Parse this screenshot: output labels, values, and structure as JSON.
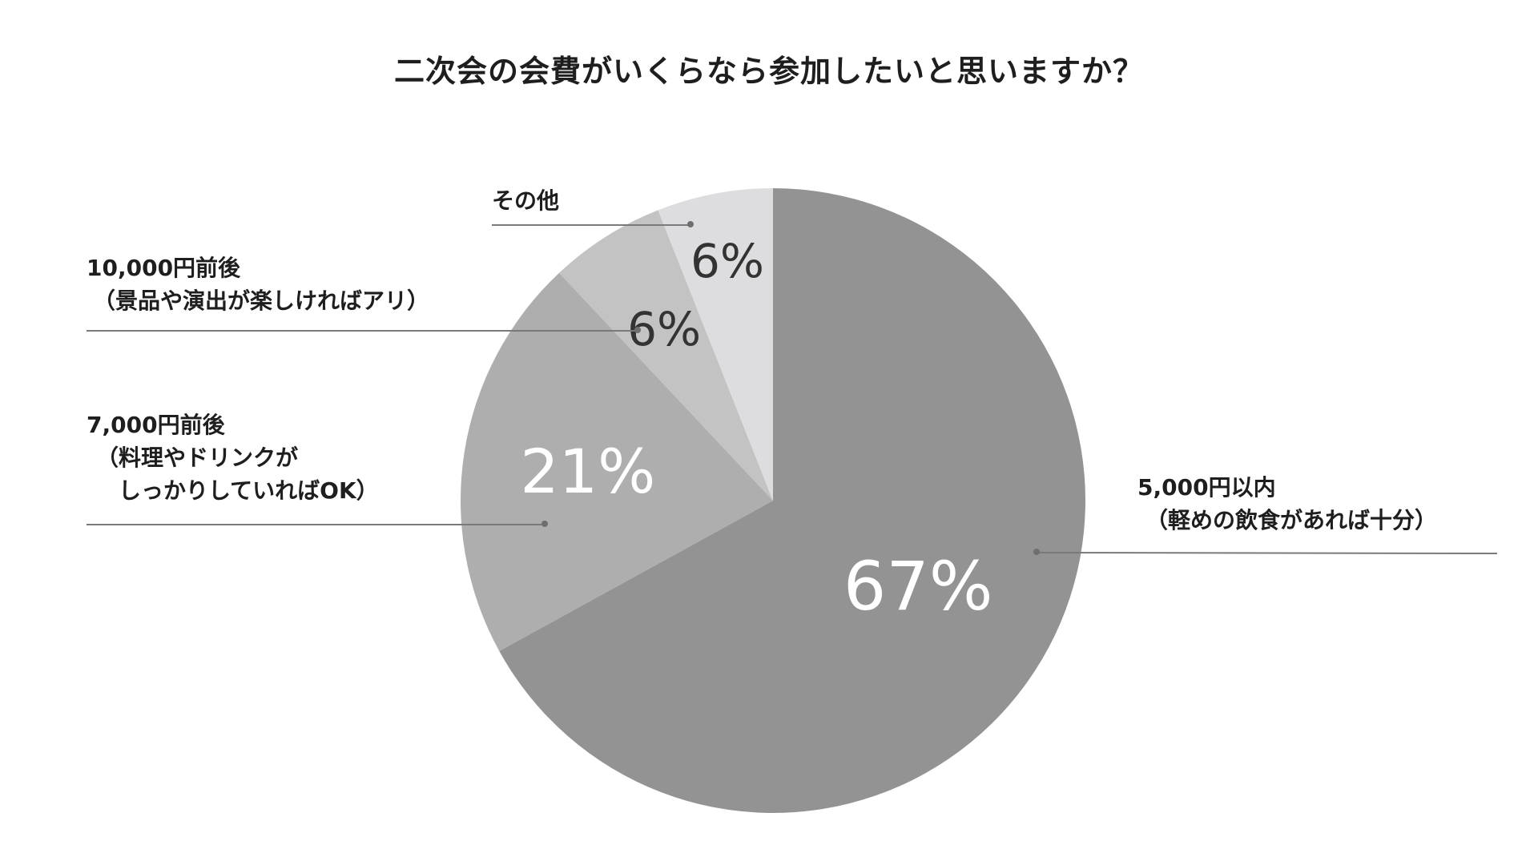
{
  "chart_data": {
    "type": "pie",
    "title": "二次会の会費がいくらなら参加したいと思いますか？",
    "start_angle_deg": 0,
    "direction": "clockwise",
    "slices": [
      {
        "key": "s5000",
        "label_lines": [
          "5,000円以内",
          "（軽めの飲食があれば十分）"
        ],
        "value": 67,
        "value_label": "67%",
        "color": "#939393",
        "value_color": "#ffffff"
      },
      {
        "key": "s7000",
        "label_lines": [
          "7,000円前後",
          "（料理やドリンクが",
          "　しっかりしていればOK）"
        ],
        "value": 21,
        "value_label": "21%",
        "color": "#aeaeae",
        "value_color": "#ffffff"
      },
      {
        "key": "s10000",
        "label_lines": [
          "10,000円前後",
          "（景品や演出が楽しければアリ）"
        ],
        "value": 6,
        "value_label": "6%",
        "color": "#c4c3c4",
        "value_color": "#333333"
      },
      {
        "key": "other",
        "label_lines": [
          "その他"
        ],
        "value": 6,
        "value_label": "6%",
        "color": "#dddde0",
        "value_color": "#333333"
      }
    ],
    "legend": "none"
  }
}
